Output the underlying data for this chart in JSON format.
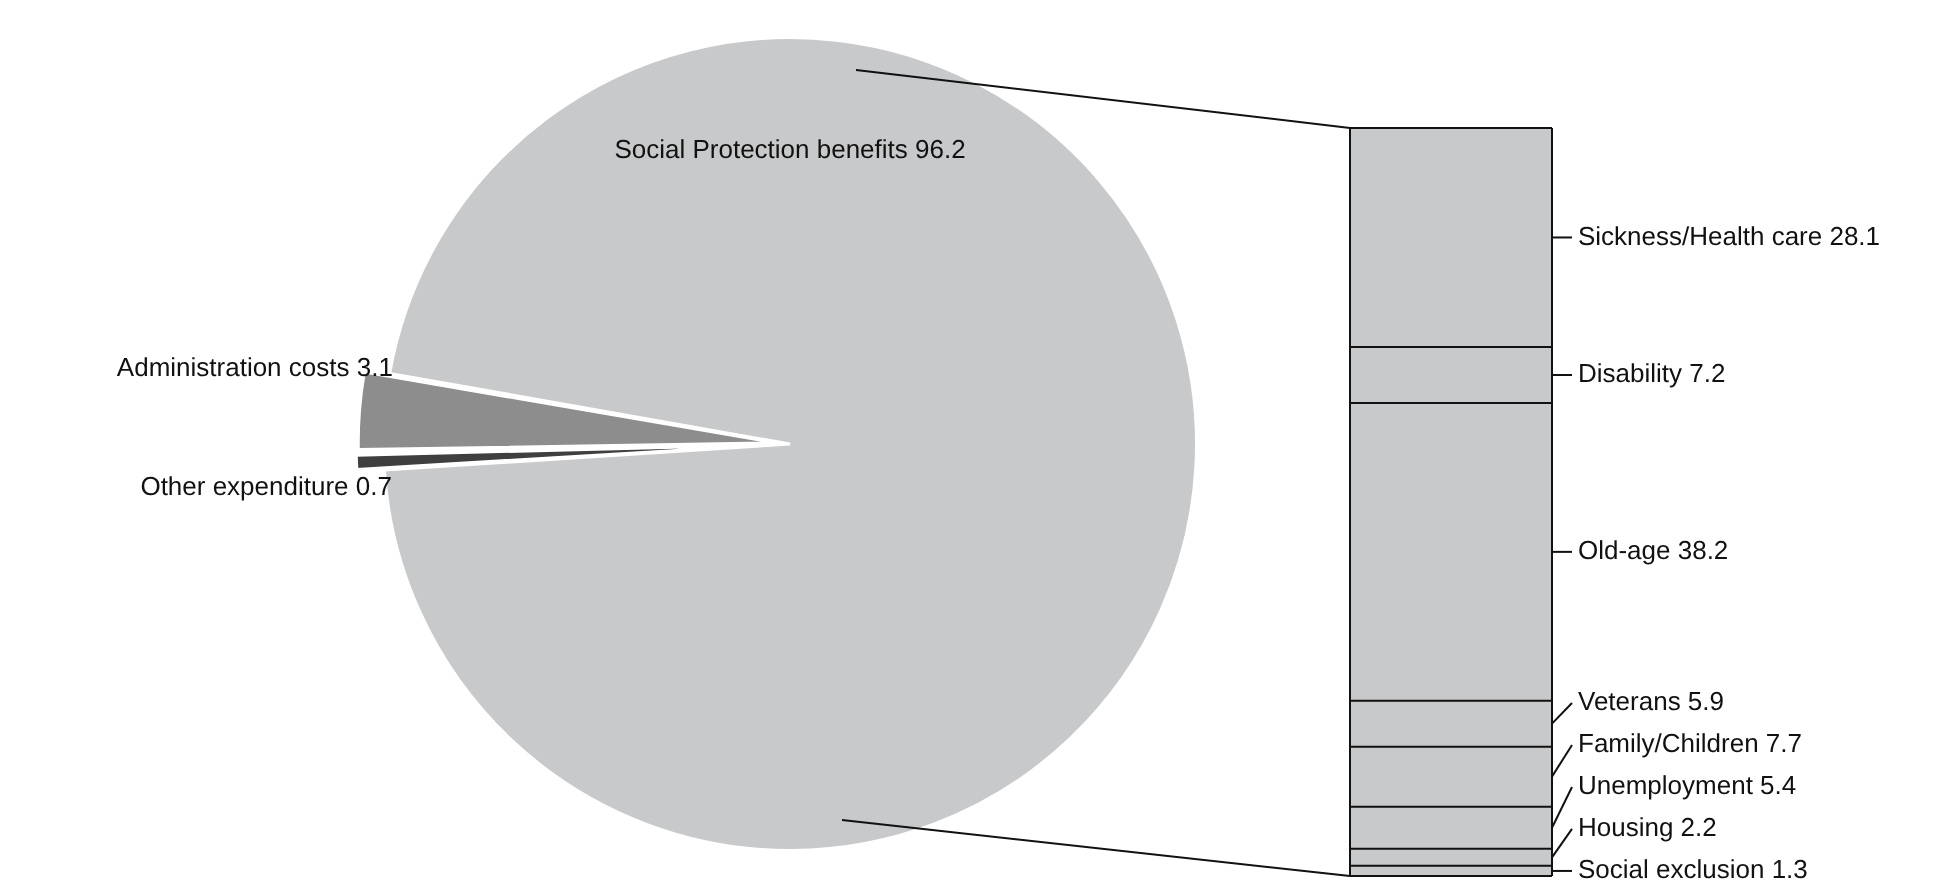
{
  "chart_data": [
    {
      "type": "pie",
      "categories": [
        "Social Protection benefits 96.2",
        "Other expenditure 0.7",
        "Administration costs 3.1"
      ],
      "values": [
        96.2,
        0.7,
        3.1
      ],
      "colors": [
        "#c8c9ca",
        "#3f3f3f",
        "#8d8d8d"
      ]
    },
    {
      "type": "other",
      "categories": [
        "Sickness/Health care",
        "Disability",
        "Old-age",
        "Veterans",
        "Family/Children",
        "Unemployment",
        "Housing",
        "Social exclusion"
      ],
      "values": [
        28.1,
        7.2,
        38.2,
        5.9,
        7.7,
        5.4,
        2.2,
        1.3
      ],
      "color": "#c8c9ca",
      "data_labels": true
    }
  ]
}
